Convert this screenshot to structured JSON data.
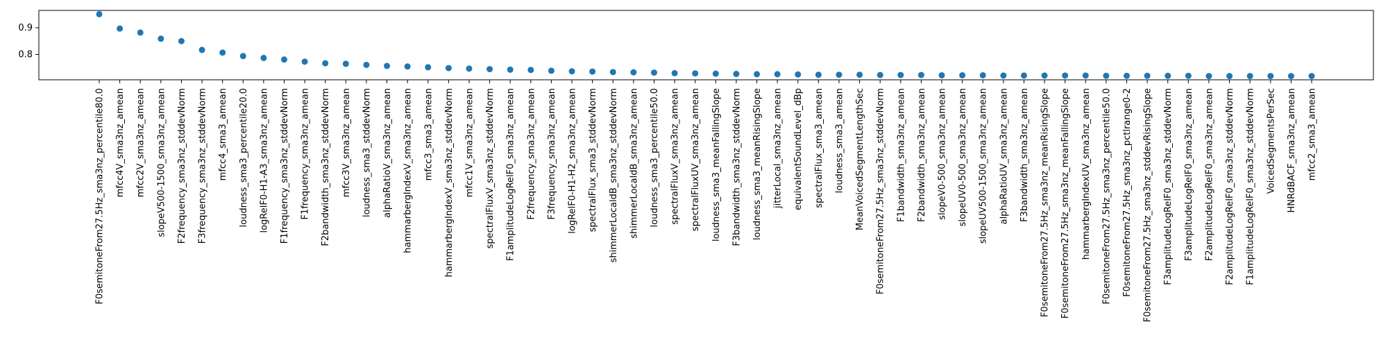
{
  "chart_data": {
    "type": "scatter",
    "title": "",
    "xlabel": "",
    "ylabel": "",
    "ylim": [
      0.705,
      0.965
    ],
    "yticks": [
      0.8,
      0.9
    ],
    "ytick_labels": [
      "0.8",
      "0.9"
    ],
    "grid": false,
    "legend": "none",
    "marker_color": "#1f77b4",
    "categories": [
      "F0semitoneFrom27.5Hz_sma3nz_percentile80.0",
      "mfcc4V_sma3nz_amean",
      "mfcc2V_sma3nz_amean",
      "slopeV500-1500_sma3nz_amean",
      "F2frequency_sma3nz_stddevNorm",
      "F3frequency_sma3nz_stddevNorm",
      "mfcc4_sma3_amean",
      "loudness_sma3_percentile20.0",
      "logRelF0-H1-A3_sma3nz_amean",
      "F1frequency_sma3nz_stddevNorm",
      "F1frequency_sma3nz_amean",
      "F2bandwidth_sma3nz_stddevNorm",
      "mfcc3V_sma3nz_amean",
      "loudness_sma3_stddevNorm",
      "alphaRatioV_sma3nz_amean",
      "hammarbergIndexV_sma3nz_amean",
      "mfcc3_sma3_amean",
      "hammarbergIndexV_sma3nz_stddevNorm",
      "mfcc1V_sma3nz_amean",
      "spectralFluxV_sma3nz_stddevNorm",
      "F1amplitudeLogRelF0_sma3nz_amean",
      "F2frequency_sma3nz_amean",
      "F3frequency_sma3nz_amean",
      "logRelF0-H1-H2_sma3nz_amean",
      "spectralFlux_sma3_stddevNorm",
      "shimmerLocaldB_sma3nz_stddevNorm",
      "shimmerLocaldB_sma3nz_amean",
      "loudness_sma3_percentile50.0",
      "spectralFluxV_sma3nz_amean",
      "spectralFluxUV_sma3nz_amean",
      "loudness_sma3_meanFallingSlope",
      "F3bandwidth_sma3nz_stddevNorm",
      "loudness_sma3_meanRisingSlope",
      "jitterLocal_sma3nz_amean",
      "equivalentSoundLevel_dBp",
      "spectralFlux_sma3_amean",
      "loudness_sma3_amean",
      "MeanVoicedSegmentLengthSec",
      "F0semitoneFrom27.5Hz_sma3nz_stddevNorm",
      "F1bandwidth_sma3nz_amean",
      "F2bandwidth_sma3nz_amean",
      "slopeV0-500_sma3nz_amean",
      "slopeUV0-500_sma3nz_amean",
      "slopeUV500-1500_sma3nz_amean",
      "alphaRatioUV_sma3nz_amean",
      "F3bandwidth_sma3nz_amean",
      "F0semitoneFrom27.5Hz_sma3nz_meanRisingSlope",
      "F0semitoneFrom27.5Hz_sma3nz_meanFallingSlope",
      "hammarbergIndexUV_sma3nz_amean",
      "F0semitoneFrom27.5Hz_sma3nz_percentile50.0",
      "F0semitoneFrom27.5Hz_sma3nz_pctlrange0-2",
      "F0semitoneFrom27.5Hz_sma3nz_stddevRisingSlope",
      "F3amplitudeLogRelF0_sma3nz_stddevNorm",
      "F3amplitudeLogRelF0_sma3nz_amean",
      "F2amplitudeLogRelF0_sma3nz_amean",
      "F2amplitudeLogRelF0_sma3nz_stddevNorm",
      "F1amplitudeLogRelF0_sma3nz_stddevNorm",
      "VoicedSegmentsPerSec",
      "HNRdBACF_sma3nz_amean",
      "mfcc2_sma3_amean"
    ],
    "values": [
      0.951,
      0.897,
      0.882,
      0.859,
      0.85,
      0.817,
      0.807,
      0.794,
      0.787,
      0.781,
      0.773,
      0.767,
      0.765,
      0.761,
      0.757,
      0.755,
      0.752,
      0.749,
      0.747,
      0.745,
      0.743,
      0.742,
      0.739,
      0.737,
      0.736,
      0.734,
      0.733,
      0.732,
      0.73,
      0.729,
      0.728,
      0.727,
      0.726,
      0.726,
      0.725,
      0.724,
      0.724,
      0.724,
      0.723,
      0.723,
      0.723,
      0.722,
      0.722,
      0.722,
      0.721,
      0.721,
      0.721,
      0.721,
      0.721,
      0.72,
      0.72,
      0.72,
      0.72,
      0.72,
      0.719,
      0.719,
      0.719,
      0.719,
      0.719,
      0.719
    ]
  }
}
